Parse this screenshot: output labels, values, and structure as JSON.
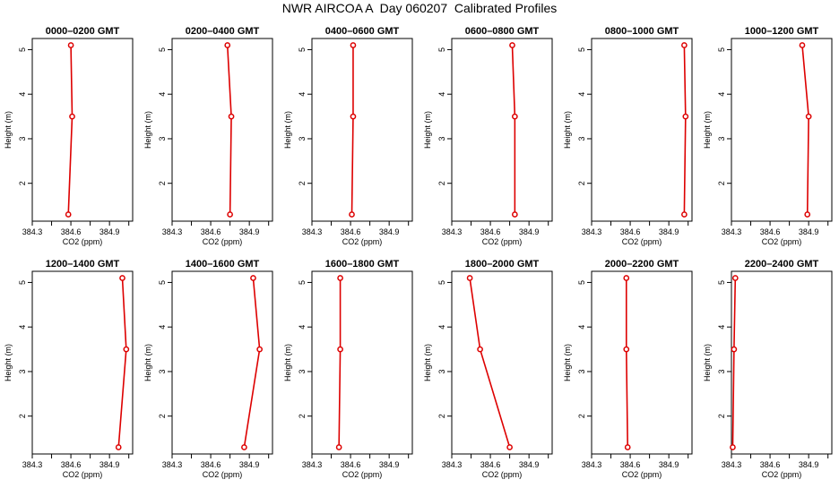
{
  "title": "NWR AIRCOA A  Day 060207  Calibrated Profiles",
  "colors": {
    "line": "#dd0000",
    "axis": "#000000",
    "background": "#ffffff"
  },
  "chart_data": [
    {
      "type": "line",
      "title": "0000–0200 GMT",
      "xlabel": "CO2 (ppm)",
      "ylabel": "Height (m)",
      "xlim": [
        384.3,
        385.08
      ],
      "ylim": [
        1.15,
        5.25
      ],
      "xticks": [
        "384.3",
        "384.6",
        "384.9"
      ],
      "xtick_values": [
        384.3,
        384.6,
        384.9
      ],
      "yticks": [
        "2",
        "3",
        "4",
        "5"
      ],
      "ytick_values": [
        2,
        3,
        4,
        5
      ],
      "grid": false,
      "x": [
        384.6,
        384.61,
        384.58
      ],
      "y": [
        5.1,
        3.5,
        1.3
      ]
    },
    {
      "type": "line",
      "title": "0200–0400 GMT",
      "xlabel": "CO2 (ppm)",
      "ylabel": "Height (m)",
      "xlim": [
        384.3,
        385.08
      ],
      "ylim": [
        1.15,
        5.25
      ],
      "xticks": [
        "384.3",
        "384.6",
        "384.9"
      ],
      "xtick_values": [
        384.3,
        384.6,
        384.9
      ],
      "yticks": [
        "2",
        "3",
        "4",
        "5"
      ],
      "ytick_values": [
        2,
        3,
        4,
        5
      ],
      "grid": false,
      "x": [
        384.73,
        384.76,
        384.75
      ],
      "y": [
        5.1,
        3.5,
        1.3
      ]
    },
    {
      "type": "line",
      "title": "0400–0600 GMT",
      "xlabel": "CO2 (ppm)",
      "ylabel": "Height (m)",
      "xlim": [
        384.3,
        385.08
      ],
      "ylim": [
        1.15,
        5.25
      ],
      "xticks": [
        "384.3",
        "384.6",
        "384.9"
      ],
      "xtick_values": [
        384.3,
        384.6,
        384.9
      ],
      "yticks": [
        "2",
        "3",
        "4",
        "5"
      ],
      "ytick_values": [
        2,
        3,
        4,
        5
      ],
      "grid": false,
      "x": [
        384.62,
        384.62,
        384.61
      ],
      "y": [
        5.1,
        3.5,
        1.3
      ]
    },
    {
      "type": "line",
      "title": "0600–0800 GMT",
      "xlabel": "CO2 (ppm)",
      "ylabel": "Height (m)",
      "xlim": [
        384.3,
        385.08
      ],
      "ylim": [
        1.15,
        5.25
      ],
      "xticks": [
        "384.3",
        "384.6",
        "384.9"
      ],
      "xtick_values": [
        384.3,
        384.6,
        384.9
      ],
      "yticks": [
        "2",
        "3",
        "4",
        "5"
      ],
      "ytick_values": [
        2,
        3,
        4,
        5
      ],
      "grid": false,
      "x": [
        384.77,
        384.79,
        384.79
      ],
      "y": [
        5.1,
        3.5,
        1.3
      ]
    },
    {
      "type": "line",
      "title": "0800–1000 GMT",
      "xlabel": "CO2 (ppm)",
      "ylabel": "Height (m)",
      "xlim": [
        384.3,
        385.08
      ],
      "ylim": [
        1.15,
        5.25
      ],
      "xticks": [
        "384.3",
        "384.6",
        "384.9"
      ],
      "xtick_values": [
        384.3,
        384.6,
        384.9
      ],
      "yticks": [
        "2",
        "3",
        "4",
        "5"
      ],
      "ytick_values": [
        2,
        3,
        4,
        5
      ],
      "grid": false,
      "x": [
        385.02,
        385.03,
        385.02
      ],
      "y": [
        5.1,
        3.5,
        1.3
      ]
    },
    {
      "type": "line",
      "title": "1000–1200 GMT",
      "xlabel": "CO2 (ppm)",
      "ylabel": "Height (m)",
      "xlim": [
        384.3,
        385.08
      ],
      "ylim": [
        1.15,
        5.25
      ],
      "xticks": [
        "384.3",
        "384.6",
        "384.9"
      ],
      "xtick_values": [
        384.3,
        384.6,
        384.9
      ],
      "yticks": [
        "2",
        "3",
        "4",
        "5"
      ],
      "ytick_values": [
        2,
        3,
        4,
        5
      ],
      "grid": false,
      "x": [
        384.85,
        384.9,
        384.89
      ],
      "y": [
        5.1,
        3.5,
        1.3
      ]
    },
    {
      "type": "line",
      "title": "1200–1400 GMT",
      "xlabel": "CO2 (ppm)",
      "ylabel": "Height (m)",
      "xlim": [
        384.3,
        385.08
      ],
      "ylim": [
        1.15,
        5.25
      ],
      "xticks": [
        "384.3",
        "384.6",
        "384.9"
      ],
      "xtick_values": [
        384.3,
        384.6,
        384.9
      ],
      "yticks": [
        "2",
        "3",
        "4",
        "5"
      ],
      "ytick_values": [
        2,
        3,
        4,
        5
      ],
      "grid": false,
      "x": [
        385.0,
        385.03,
        384.97
      ],
      "y": [
        5.1,
        3.5,
        1.3
      ]
    },
    {
      "type": "line",
      "title": "1400–1600 GMT",
      "xlabel": "CO2 (ppm)",
      "ylabel": "Height (m)",
      "xlim": [
        384.3,
        385.08
      ],
      "ylim": [
        1.15,
        5.25
      ],
      "xticks": [
        "384.3",
        "384.6",
        "384.9"
      ],
      "xtick_values": [
        384.3,
        384.6,
        384.9
      ],
      "yticks": [
        "2",
        "3",
        "4",
        "5"
      ],
      "ytick_values": [
        2,
        3,
        4,
        5
      ],
      "grid": false,
      "x": [
        384.93,
        384.98,
        384.86
      ],
      "y": [
        5.1,
        3.5,
        1.3
      ]
    },
    {
      "type": "line",
      "title": "1600–1800 GMT",
      "xlabel": "CO2 (ppm)",
      "ylabel": "Height (m)",
      "xlim": [
        384.3,
        385.08
      ],
      "ylim": [
        1.15,
        5.25
      ],
      "xticks": [
        "384.3",
        "384.6",
        "384.9"
      ],
      "xtick_values": [
        384.3,
        384.6,
        384.9
      ],
      "yticks": [
        "2",
        "3",
        "4",
        "5"
      ],
      "ytick_values": [
        2,
        3,
        4,
        5
      ],
      "grid": false,
      "x": [
        384.52,
        384.52,
        384.51
      ],
      "y": [
        5.1,
        3.5,
        1.3
      ]
    },
    {
      "type": "line",
      "title": "1800–2000 GMT",
      "xlabel": "CO2 (ppm)",
      "ylabel": "Height (m)",
      "xlim": [
        384.3,
        385.08
      ],
      "ylim": [
        1.15,
        5.25
      ],
      "xticks": [
        "384.3",
        "384.6",
        "384.9"
      ],
      "xtick_values": [
        384.3,
        384.6,
        384.9
      ],
      "yticks": [
        "2",
        "3",
        "4",
        "5"
      ],
      "ytick_values": [
        2,
        3,
        4,
        5
      ],
      "grid": false,
      "x": [
        384.44,
        384.52,
        384.75
      ],
      "y": [
        5.1,
        3.5,
        1.3
      ]
    },
    {
      "type": "line",
      "title": "2000–2200 GMT",
      "xlabel": "CO2 (ppm)",
      "ylabel": "Height (m)",
      "xlim": [
        384.3,
        385.08
      ],
      "ylim": [
        1.15,
        5.25
      ],
      "xticks": [
        "384.3",
        "384.6",
        "384.9"
      ],
      "xtick_values": [
        384.3,
        384.6,
        384.9
      ],
      "yticks": [
        "2",
        "3",
        "4",
        "5"
      ],
      "ytick_values": [
        2,
        3,
        4,
        5
      ],
      "grid": false,
      "x": [
        384.57,
        384.57,
        384.58
      ],
      "y": [
        5.1,
        3.5,
        1.3
      ]
    },
    {
      "type": "line",
      "title": "2200–2400 GMT",
      "xlabel": "CO2 (ppm)",
      "ylabel": "Height (m)",
      "xlim": [
        384.3,
        385.08
      ],
      "ylim": [
        1.15,
        5.25
      ],
      "xticks": [
        "384.3",
        "384.6",
        "384.9"
      ],
      "xtick_values": [
        384.3,
        384.6,
        384.9
      ],
      "yticks": [
        "2",
        "3",
        "4",
        "5"
      ],
      "ytick_values": [
        2,
        3,
        4,
        5
      ],
      "grid": false,
      "x": [
        384.33,
        384.32,
        384.31
      ],
      "y": [
        5.1,
        3.5,
        1.3
      ]
    }
  ]
}
